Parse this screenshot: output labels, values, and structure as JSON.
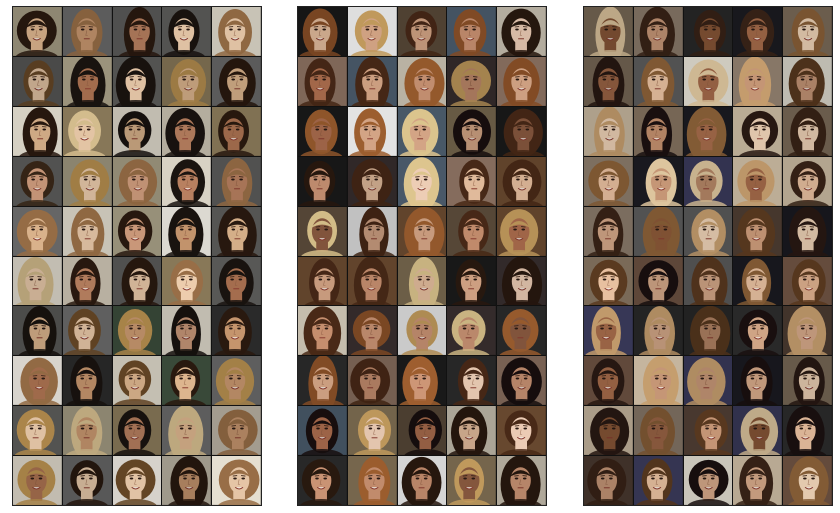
{
  "figure": {
    "description_kind": "face-sample-grids",
    "panels": [
      {
        "name": "grid-left",
        "rows": 10,
        "cols": 5,
        "palette": {
          "bg": [
            "#8a7a5a",
            "#e8e2d4",
            "#6a6a6a",
            "#5a5a58",
            "#3a4a3a",
            "#2b2b2b",
            "#d8d2c4",
            "#c0b8a8",
            "#a09880",
            "#e4e0d8"
          ],
          "skin": [
            "#c99870",
            "#e8c8a8",
            "#b88060",
            "#d4a080",
            "#f0d0b0",
            "#a87050",
            "#e0b890"
          ],
          "hair": [
            "#2a1a10",
            "#6a4a28",
            "#b89050",
            "#d8c090",
            "#1a1410",
            "#3a2818",
            "#9a7048"
          ]
        }
      },
      {
        "name": "grid-middle",
        "rows": 10,
        "cols": 5,
        "palette": {
          "bg": [
            "#6a4a30",
            "#2a2a2a",
            "#7a6a50",
            "#3a3030",
            "#e8e8e8",
            "#4a5a6a",
            "#8a7060",
            "#c8c0b0",
            "#5a4a3a",
            "#1a1a1a"
          ],
          "skin": [
            "#d8a888",
            "#8a5a40",
            "#e8c0a0",
            "#c89070",
            "#f0d0b8",
            "#b07050",
            "#d09878"
          ],
          "hair": [
            "#4a2a18",
            "#1a1010",
            "#8a5028",
            "#c8a060",
            "#2a1a10",
            "#a06030",
            "#e0c890"
          ]
        }
      },
      {
        "name": "grid-right",
        "rows": 10,
        "cols": 5,
        "palette": {
          "bg": [
            "#e0dcd0",
            "#3a3a5a",
            "#5a5a5a",
            "#6a5040",
            "#2a2a2a",
            "#8a7a6a",
            "#4a3a30",
            "#c8b8a0",
            "#1a1a20",
            "#7a6a58"
          ],
          "skin": [
            "#c89878",
            "#a06848",
            "#e8c0a0",
            "#d4a888",
            "#f0d4b8",
            "#8a5838",
            "#b88868"
          ],
          "hair": [
            "#3a2418",
            "#1a1010",
            "#8a6038",
            "#c8a070",
            "#5a3a20",
            "#e0c8a0",
            "#2a1a14"
          ]
        }
      }
    ]
  }
}
